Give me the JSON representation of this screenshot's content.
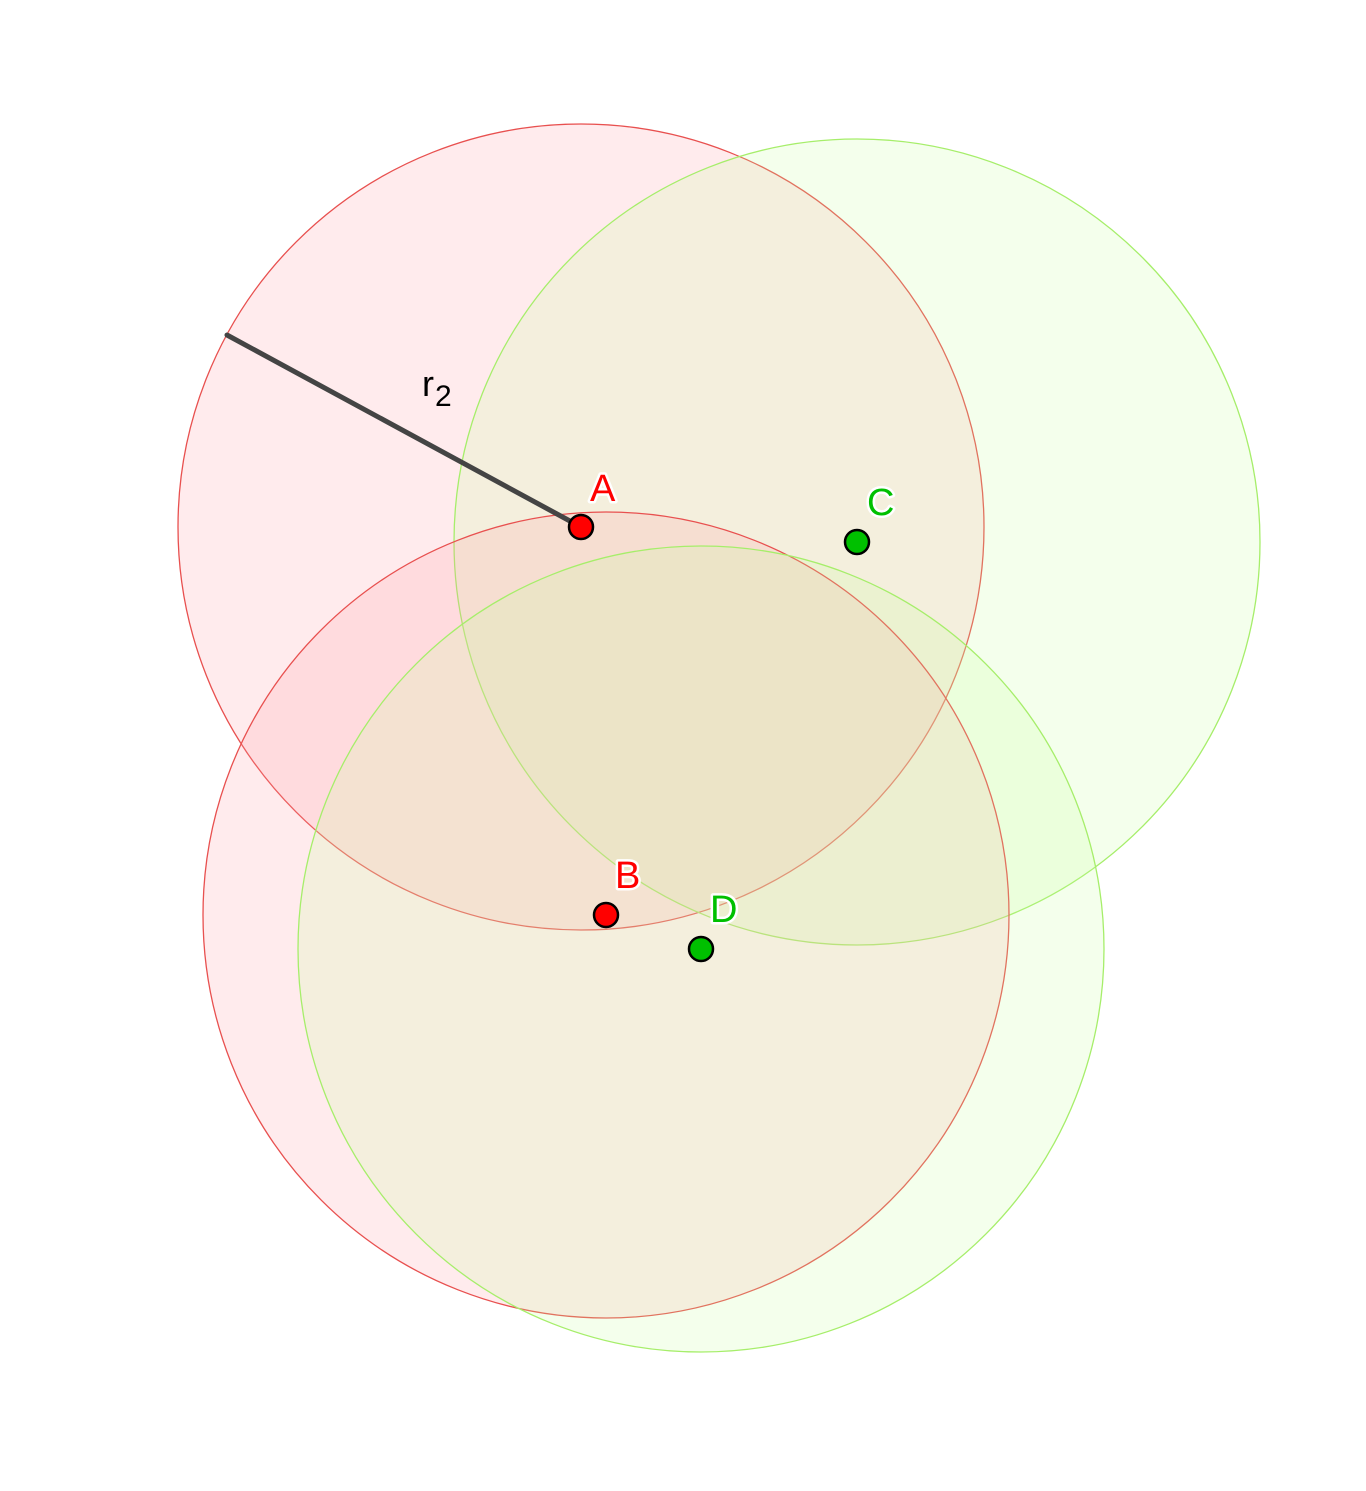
{
  "colors": {
    "red_stroke": "#e8504f",
    "red_fill": "#ff9aa4",
    "green_stroke": "#a6ee6a",
    "green_fill": "#caff9f",
    "red_point": "#ff0000",
    "green_point": "#00c000",
    "segment": "#444444"
  },
  "points": {
    "A": {
      "label": "A",
      "color": "red"
    },
    "B": {
      "label": "B",
      "color": "red"
    },
    "C": {
      "label": "C",
      "color": "green"
    },
    "D": {
      "label": "D",
      "color": "green"
    }
  },
  "circles": [
    {
      "center": "A",
      "color": "red"
    },
    {
      "center": "B",
      "color": "red"
    },
    {
      "center": "C",
      "color": "green"
    },
    {
      "center": "D",
      "color": "green"
    }
  ],
  "segment": {
    "from": "A",
    "label_main": "r",
    "label_sub": "2"
  }
}
